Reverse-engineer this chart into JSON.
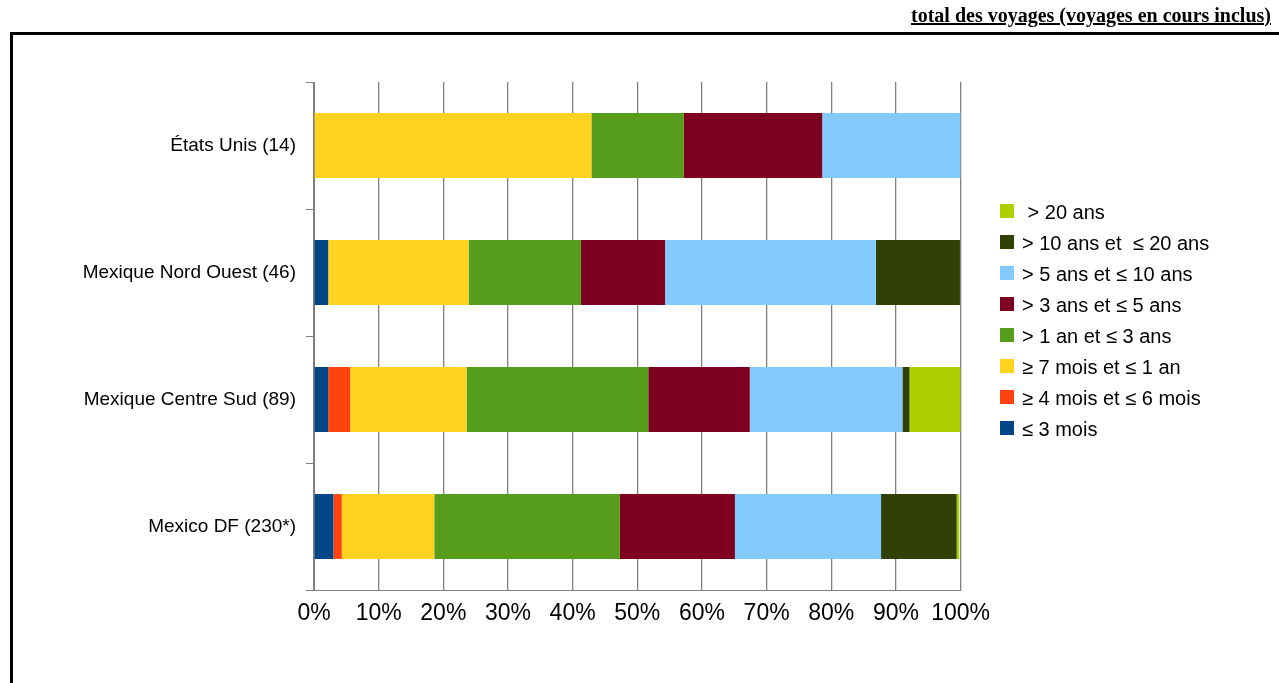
{
  "chart_data": {
    "type": "bar",
    "orientation": "horizontal",
    "stacked": true,
    "title": "total des voyages (voyages en cours inclus)",
    "categories": [
      "États Unis (14)",
      "Mexique Nord Ouest (46)",
      "Mexique Centre Sud (89)",
      "Mexico DF (230*)"
    ],
    "series": [
      {
        "name": "≤ 3 mois",
        "color": "#004586",
        "values": [
          0,
          2.2,
          2.2,
          3.0
        ]
      },
      {
        "name": "≥ 4 mois et ≤ 6 mois",
        "color": "#ff420e",
        "values": [
          0,
          0,
          3.4,
          1.3
        ]
      },
      {
        "name": "≥ 7 mois et ≤ 1 an",
        "color": "#ffd320",
        "values": [
          42.9,
          21.7,
          18.0,
          14.3
        ]
      },
      {
        "name": "> 1 an et ≤ 3 ans",
        "color": "#579d1c",
        "values": [
          14.3,
          17.4,
          28.1,
          28.7
        ]
      },
      {
        "name": "> 3 ans et ≤ 5 ans",
        "color": "#7e0021",
        "values": [
          21.4,
          13.0,
          15.7,
          17.8
        ]
      },
      {
        "name": "> 5 ans et ≤ 10 ans",
        "color": "#83caff",
        "values": [
          21.4,
          32.6,
          23.6,
          22.6
        ]
      },
      {
        "name": "> 10 ans et  ≤ 20 ans",
        "color": "#314004",
        "values": [
          0,
          13.0,
          1.1,
          11.7
        ]
      },
      {
        "name": " > 20 ans",
        "color": "#afd000",
        "values": [
          0,
          0,
          7.9,
          0.4
        ]
      }
    ],
    "xlim": [
      0,
      100
    ],
    "xticks": [
      {
        "value": 0,
        "label": "0%"
      },
      {
        "value": 10,
        "label": "10%"
      },
      {
        "value": 20,
        "label": "20%"
      },
      {
        "value": 30,
        "label": "30%"
      },
      {
        "value": 40,
        "label": "40%"
      },
      {
        "value": 50,
        "label": "50%"
      },
      {
        "value": 60,
        "label": "60%"
      },
      {
        "value": 70,
        "label": "70%"
      },
      {
        "value": 80,
        "label": "80%"
      },
      {
        "value": 90,
        "label": "90%"
      },
      {
        "value": 100,
        "label": "100%"
      }
    ],
    "grid": "x",
    "legend": "right"
  }
}
